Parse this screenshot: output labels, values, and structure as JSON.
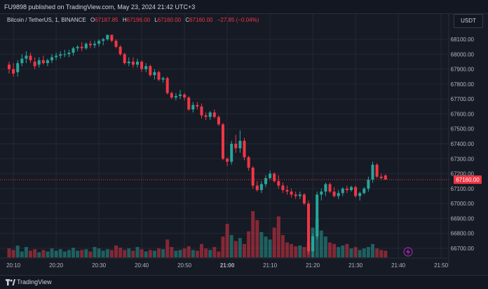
{
  "header": {
    "published": "FU9898 published on TradingView.com, May 23, 2024 21:42 UTC+3"
  },
  "legend": {
    "symbol": "Bitcoin / TetherUS, 1, BINANCE",
    "o_label": "O",
    "o_value": "67187.85",
    "h_label": "H",
    "h_value": "67196.00",
    "l_label": "L",
    "l_value": "67160.00",
    "c_label": "C",
    "c_value": "67160.00",
    "change": "−27.85 (−0.04%)"
  },
  "currency_button": "USDT",
  "footer": {
    "brand": "TradingView"
  },
  "colors": {
    "up": "#26a69a",
    "down": "#f23645",
    "grid": "#242833",
    "background": "#161a25"
  },
  "chart_data": {
    "type": "candlestick",
    "symbol": "BTCUSDT",
    "interval": "1m",
    "ylim": [
      66600,
      68200
    ],
    "y_ticks": [
      "68100.00",
      "68000.00",
      "67900.00",
      "67800.00",
      "67700.00",
      "67600.00",
      "67500.00",
      "67400.00",
      "67300.00",
      "67200.00",
      "67100.00",
      "67000.00",
      "66900.00",
      "66800.00",
      "66700.00"
    ],
    "x_ticks": [
      "20:10",
      "20:20",
      "20:30",
      "20:40",
      "20:50",
      "21:00",
      "21:10",
      "21:20",
      "21:30",
      "21:40",
      "21:50"
    ],
    "x_start": "20:09",
    "last_price": "67160.00",
    "ohlc": [
      [
        67930,
        67950,
        67870,
        67900
      ],
      [
        67900,
        67940,
        67850,
        67870
      ],
      [
        67880,
        67960,
        67850,
        67940
      ],
      [
        67940,
        68000,
        67920,
        67970
      ],
      [
        67970,
        68020,
        67940,
        67990
      ],
      [
        67990,
        68010,
        67940,
        67960
      ],
      [
        67950,
        67980,
        67900,
        67920
      ],
      [
        67930,
        67980,
        67910,
        67960
      ],
      [
        67960,
        67990,
        67930,
        67940
      ],
      [
        67940,
        67970,
        67920,
        67960
      ],
      [
        67960,
        68000,
        67940,
        67980
      ],
      [
        67980,
        68010,
        67960,
        67990
      ],
      [
        67990,
        68020,
        67970,
        68000
      ],
      [
        68000,
        68030,
        67980,
        68000
      ],
      [
        68000,
        68030,
        67980,
        68010
      ],
      [
        68010,
        68050,
        67990,
        68040
      ],
      [
        68040,
        68060,
        68020,
        68050
      ],
      [
        68050,
        68080,
        68020,
        68040
      ],
      [
        68040,
        68080,
        68030,
        68070
      ],
      [
        68070,
        68090,
        68040,
        68060
      ],
      [
        68060,
        68090,
        68040,
        68070
      ],
      [
        68070,
        68100,
        68050,
        68090
      ],
      [
        68090,
        68110,
        68060,
        68100
      ],
      [
        68100,
        68130,
        68090,
        68130
      ],
      [
        68130,
        68130,
        68080,
        68090
      ],
      [
        68090,
        68100,
        68040,
        68050
      ],
      [
        68050,
        68060,
        67990,
        68000
      ],
      [
        68000,
        68010,
        67930,
        67940
      ],
      [
        67940,
        67980,
        67920,
        67950
      ],
      [
        67950,
        67980,
        67910,
        67930
      ],
      [
        67930,
        67970,
        67910,
        67950
      ],
      [
        67950,
        67960,
        67880,
        67900
      ],
      [
        67900,
        67940,
        67880,
        67920
      ],
      [
        67920,
        67930,
        67850,
        67860
      ],
      [
        67860,
        67900,
        67830,
        67880
      ],
      [
        67880,
        67890,
        67820,
        67830
      ],
      [
        67830,
        67850,
        67810,
        67840
      ],
      [
        67840,
        67850,
        67730,
        67740
      ],
      [
        67740,
        67750,
        67700,
        67710
      ],
      [
        67710,
        67740,
        67690,
        67720
      ],
      [
        67720,
        67760,
        67700,
        67730
      ],
      [
        67730,
        67740,
        67690,
        67710
      ],
      [
        67710,
        67720,
        67620,
        67630
      ],
      [
        67630,
        67680,
        67610,
        67660
      ],
      [
        67660,
        67680,
        67630,
        67650
      ],
      [
        67650,
        67670,
        67570,
        67590
      ],
      [
        67590,
        67610,
        67560,
        67580
      ],
      [
        67580,
        67620,
        67560,
        67610
      ],
      [
        67610,
        67630,
        67570,
        67580
      ],
      [
        67580,
        67590,
        67520,
        67530
      ],
      [
        67530,
        67540,
        67290,
        67300
      ],
      [
        67300,
        67310,
        67250,
        67280
      ],
      [
        67280,
        67420,
        67260,
        67400
      ],
      [
        67400,
        67460,
        67340,
        67370
      ],
      [
        67370,
        67490,
        67340,
        67420
      ],
      [
        67420,
        67440,
        67290,
        67310
      ],
      [
        67310,
        67320,
        67220,
        67240
      ],
      [
        67240,
        67250,
        67100,
        67120
      ],
      [
        67120,
        67150,
        67080,
        67090
      ],
      [
        67090,
        67150,
        67070,
        67130
      ],
      [
        67130,
        67190,
        67110,
        67170
      ],
      [
        67170,
        67220,
        67160,
        67200
      ],
      [
        67200,
        67210,
        67140,
        67150
      ],
      [
        67150,
        67190,
        67100,
        67120
      ],
      [
        67120,
        67140,
        67070,
        67090
      ],
      [
        67090,
        67120,
        67060,
        67080
      ],
      [
        67080,
        67100,
        67040,
        67060
      ],
      [
        67060,
        67080,
        67030,
        67050
      ],
      [
        67050,
        67080,
        67030,
        67060
      ],
      [
        67060,
        67070,
        66990,
        67000
      ],
      [
        67000,
        67020,
        66660,
        66680
      ],
      [
        66680,
        66800,
        66640,
        66780
      ],
      [
        66780,
        67080,
        66760,
        67060
      ],
      [
        67060,
        67100,
        67020,
        67080
      ],
      [
        67080,
        67140,
        67050,
        67130
      ],
      [
        67130,
        67140,
        67070,
        67080
      ],
      [
        67080,
        67110,
        67040,
        67050
      ],
      [
        67050,
        67090,
        67030,
        67070
      ],
      [
        67070,
        67110,
        67050,
        67100
      ],
      [
        67100,
        67120,
        67070,
        67090
      ],
      [
        67090,
        67120,
        67080,
        67110
      ],
      [
        67110,
        67120,
        67040,
        67050
      ],
      [
        67050,
        67080,
        67020,
        67070
      ],
      [
        67070,
        67110,
        67060,
        67100
      ],
      [
        67100,
        67180,
        67080,
        67160
      ],
      [
        67160,
        67280,
        67140,
        67260
      ],
      [
        67260,
        67270,
        67170,
        67180
      ],
      [
        67180,
        67200,
        67160,
        67170
      ],
      [
        67187.85,
        67196,
        67160,
        67160
      ]
    ],
    "volume": [
      12,
      10,
      16,
      8,
      14,
      9,
      11,
      7,
      10,
      8,
      12,
      9,
      11,
      8,
      10,
      13,
      9,
      10,
      11,
      8,
      14,
      12,
      9,
      11,
      10,
      16,
      13,
      10,
      12,
      9,
      14,
      11,
      8,
      10,
      9,
      12,
      11,
      24,
      14,
      9,
      10,
      12,
      15,
      10,
      9,
      18,
      12,
      10,
      14,
      8,
      28,
      45,
      30,
      22,
      26,
      18,
      35,
      62,
      50,
      34,
      28,
      24,
      40,
      55,
      30,
      20,
      18,
      15,
      16,
      14,
      20,
      40,
      52,
      36,
      28,
      20,
      18,
      14,
      16,
      18,
      12,
      14,
      10,
      12,
      14,
      18,
      12,
      10,
      9
    ]
  }
}
